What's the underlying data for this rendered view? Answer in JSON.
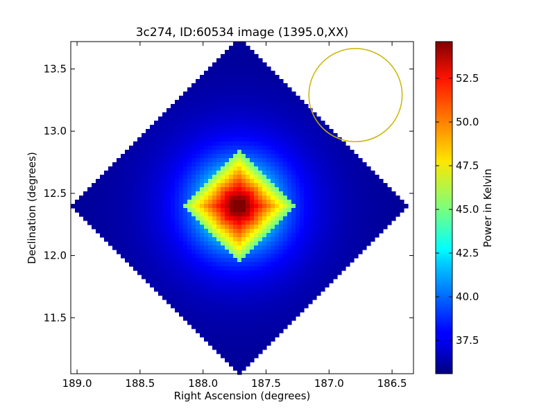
{
  "chart_data": {
    "type": "heatmap",
    "title": "3c274, ID:60534 image (1395.0,XX)",
    "xlabel": "Right Ascension (degrees)",
    "ylabel": "Declination (degrees)",
    "xlim": [
      189.05,
      186.33
    ],
    "ylim": [
      11.05,
      13.72
    ],
    "x_ticks": [
      "189.0",
      "188.5",
      "188.0",
      "187.5",
      "187.0",
      "186.5"
    ],
    "y_ticks": [
      "11.5",
      "12.0",
      "12.5",
      "13.0",
      "13.5"
    ],
    "peak": {
      "ra": 187.72,
      "dec": 12.4,
      "value": 54.5
    },
    "field_half_width_deg": 1.34,
    "background_value": 36.0,
    "beam_circle": {
      "ra": 186.79,
      "dec": 13.29,
      "radius_deg": 0.37,
      "color": "#c8b400"
    },
    "colorbar": {
      "label": "Power in Kelvin",
      "vmin": 35.6,
      "vmax": 54.6,
      "ticks": [
        "37.5",
        "40.0",
        "42.5",
        "45.0",
        "47.5",
        "50.0",
        "52.5"
      ],
      "colormap": "jet"
    }
  }
}
